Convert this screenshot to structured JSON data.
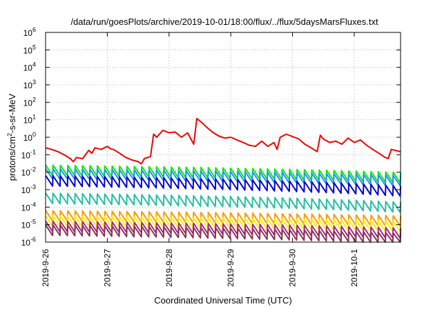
{
  "chart_data": {
    "type": "line",
    "title": "/data/run/goesPlots/archive/2019-10-01/18:00/flux/../flux/5daysMarsFluxes.txt",
    "xlabel": "Coordinated Universal Time (UTC)",
    "ylabel": "protons/cm2-s-sr-MeV",
    "ylabel_parts": {
      "base": "protons/cm",
      "sup": "2",
      "rest": "-s-sr-MeV"
    },
    "y_scale": "log",
    "ylim": [
      1e-06,
      1000000.0
    ],
    "y_ticks": [
      {
        "base": "10",
        "exp": "-6"
      },
      {
        "base": "10",
        "exp": "-5"
      },
      {
        "base": "10",
        "exp": "-4"
      },
      {
        "base": "10",
        "exp": "-3"
      },
      {
        "base": "10",
        "exp": "-2"
      },
      {
        "base": "10",
        "exp": "-1"
      },
      {
        "base": "10",
        "exp": "0"
      },
      {
        "base": "10",
        "exp": "1"
      },
      {
        "base": "10",
        "exp": "2"
      },
      {
        "base": "10",
        "exp": "3"
      },
      {
        "base": "10",
        "exp": "4"
      },
      {
        "base": "10",
        "exp": "5"
      },
      {
        "base": "10",
        "exp": "6"
      }
    ],
    "xlim": [
      "2019-9-26",
      "2019-10-1 18:00"
    ],
    "x_ticks": [
      "2019-9-26",
      "2019-9-27",
      "2019-9-28",
      "2019-9-29",
      "2019-9-30",
      "2019-10-1"
    ],
    "grid": true,
    "series": [
      {
        "color": "#ee0000",
        "x": [
          0,
          0.1,
          0.2,
          0.3,
          0.4,
          0.45,
          0.5,
          0.6,
          0.7,
          0.75,
          0.8,
          0.9,
          1.0,
          1.05,
          1.1,
          1.2,
          1.3,
          1.4,
          1.5,
          1.55,
          1.6,
          1.7,
          1.75,
          1.8,
          1.9,
          2.0,
          2.1,
          2.2,
          2.3,
          2.4,
          2.45,
          2.55,
          2.6,
          2.7,
          2.8,
          2.9,
          3.0,
          3.1,
          3.2,
          3.3,
          3.4,
          3.5,
          3.6,
          3.7,
          3.75,
          3.8,
          3.9,
          4.0,
          4.1,
          4.2,
          4.3,
          4.4,
          4.45,
          4.5,
          4.6,
          4.7,
          4.8,
          4.9,
          5.0,
          5.1,
          5.2,
          5.3,
          5.4,
          5.5,
          5.55,
          5.6,
          5.75
        ],
        "values": [
          0.25,
          0.2,
          0.15,
          0.1,
          0.06,
          0.04,
          0.07,
          0.06,
          0.18,
          0.12,
          0.25,
          0.2,
          0.3,
          0.22,
          0.2,
          0.12,
          0.07,
          0.05,
          0.04,
          0.03,
          0.06,
          0.08,
          1.5,
          1.0,
          2.5,
          1.8,
          2.0,
          1.0,
          1.8,
          0.4,
          12.0,
          6.0,
          4.0,
          2.0,
          1.2,
          0.9,
          1.0,
          0.7,
          0.5,
          0.35,
          0.3,
          0.6,
          0.3,
          0.5,
          0.2,
          1.0,
          1.5,
          1.1,
          0.8,
          0.4,
          0.25,
          0.15,
          1.3,
          0.8,
          0.5,
          0.6,
          0.4,
          0.9,
          0.5,
          0.7,
          0.35,
          0.2,
          0.12,
          0.07,
          0.06,
          0.2,
          0.15
        ]
      },
      {
        "color": "#00ee00",
        "x": [
          0,
          5.75
        ],
        "values": [
          0.008,
          0.003
        ]
      },
      {
        "color": "#1e90ff",
        "x": [
          0,
          5.75
        ],
        "values": [
          0.005,
          0.002
        ]
      },
      {
        "color": "#0000cc",
        "x": [
          0,
          5.75
        ],
        "values": [
          0.002,
          0.0005
        ]
      },
      {
        "color": "#20c0a0",
        "x": [
          0,
          5.75
        ],
        "values": [
          0.0002,
          6e-05
        ]
      },
      {
        "color": "#ff9900",
        "x": [
          0,
          5.75
        ],
        "values": [
          2e-05,
          1e-05
        ]
      },
      {
        "color": "#ffee00",
        "x": [
          0,
          5.75
        ],
        "values": [
          1e-05,
          5e-06
        ]
      },
      {
        "color": "#aa2288",
        "x": [
          0,
          5.75
        ],
        "values": [
          5e-06,
          2e-06
        ]
      },
      {
        "color": "#883355",
        "x": [
          0,
          5.75
        ],
        "values": [
          3e-06,
          1e-06
        ]
      }
    ]
  }
}
